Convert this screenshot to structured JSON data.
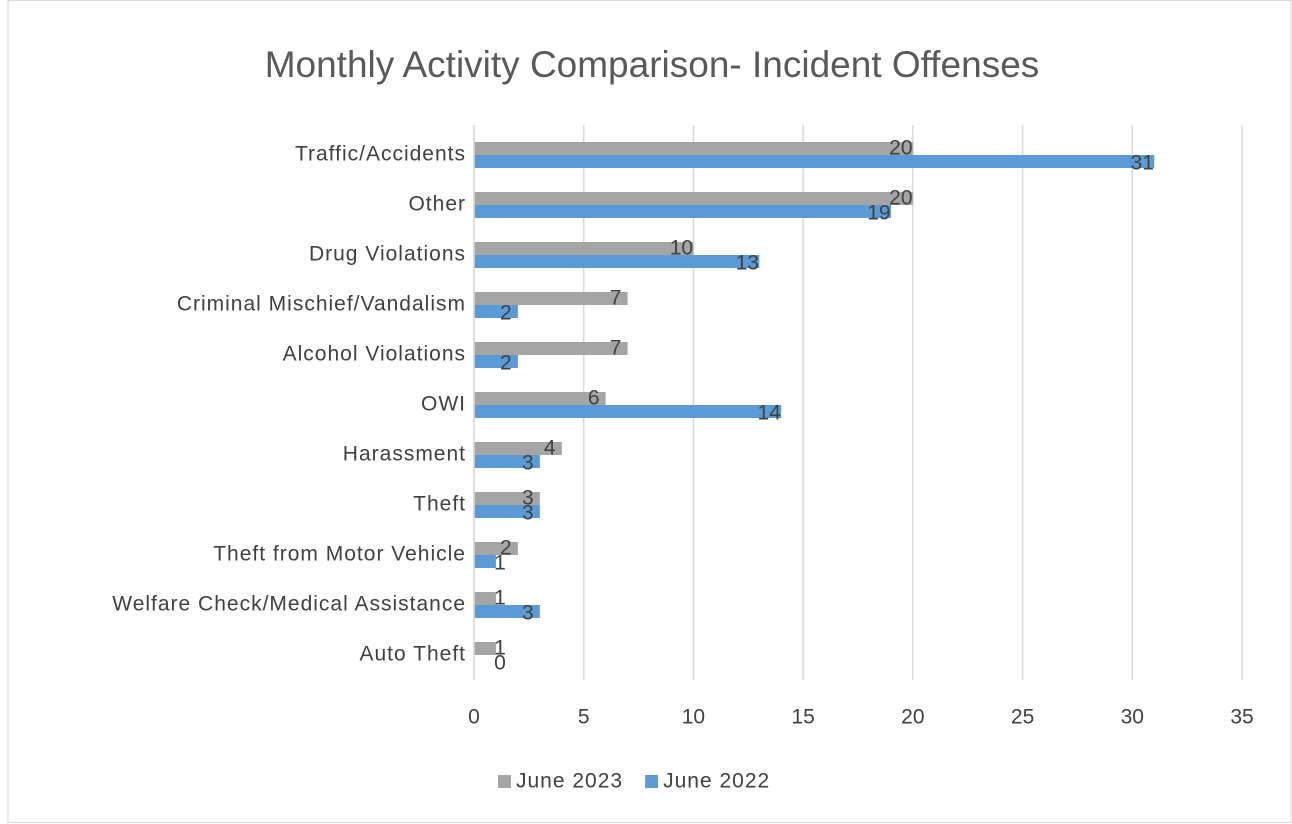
{
  "chart_data": {
    "type": "bar",
    "orientation": "horizontal",
    "title": "Monthly Activity Comparison- Incident Offenses",
    "categories": [
      "Traffic/Accidents",
      "Other",
      "Drug Violations",
      "Criminal Mischief/Vandalism",
      "Alcohol Violations",
      "OWI",
      "Harassment",
      "Theft",
      "Theft from Motor Vehicle",
      "Welfare Check/Medical Assistance",
      "Auto Theft"
    ],
    "series": [
      {
        "name": "June 2023",
        "color": "#a5a5a5",
        "values": [
          20,
          20,
          10,
          7,
          7,
          6,
          4,
          3,
          2,
          1,
          1
        ]
      },
      {
        "name": "June 2022",
        "color": "#5b9bd5",
        "values": [
          31,
          19,
          13,
          2,
          2,
          14,
          3,
          3,
          1,
          3,
          0
        ]
      }
    ],
    "xlim": [
      0,
      35
    ],
    "xticks": [
      0,
      5,
      10,
      15,
      20,
      25,
      30,
      35
    ],
    "grid": true,
    "legend": "bottom"
  }
}
